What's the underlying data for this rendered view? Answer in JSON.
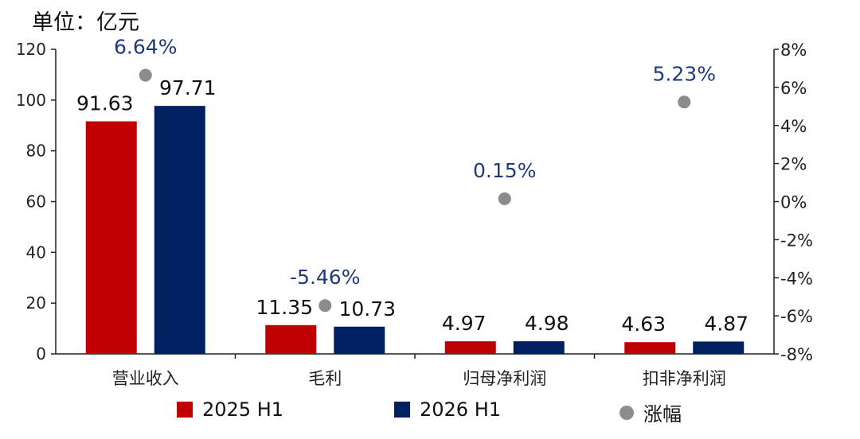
{
  "unit_label": "单位：亿元",
  "legend": [
    {
      "label": "2025 H1",
      "color": "#C00000",
      "shape": "square"
    },
    {
      "label": "2026 H1",
      "color": "#002060",
      "shape": "square"
    },
    {
      "label": "涨幅",
      "color": "#8C8C8C",
      "shape": "circle"
    }
  ],
  "chart_data": {
    "type": "bar",
    "categories": [
      "营业收入",
      "毛利",
      "归母净利润",
      "扣非净利润"
    ],
    "series": [
      {
        "name": "2025 H1",
        "values": [
          91.63,
          11.35,
          4.97,
          4.63
        ],
        "labels": [
          "91.63",
          "11.35",
          "4.97",
          "4.63"
        ],
        "color": "#C00000",
        "axis": "left"
      },
      {
        "name": "2026 H1",
        "values": [
          97.71,
          10.73,
          4.98,
          4.87
        ],
        "labels": [
          "97.71",
          "10.73",
          "4.98",
          "4.87"
        ],
        "color": "#002060",
        "axis": "left"
      },
      {
        "name": "涨幅",
        "type": "scatter",
        "values": [
          6.64,
          -5.46,
          0.15,
          5.23
        ],
        "labels": [
          "6.64%",
          "-5.46%",
          "0.15%",
          "5.23%"
        ],
        "color": "#8C8C8C",
        "label_color": "#1F3A7A",
        "axis": "right"
      }
    ],
    "ylim": [
      0,
      120
    ],
    "yticks": [
      "0",
      "20",
      "40",
      "60",
      "80",
      "100",
      "120"
    ],
    "y2lim": [
      -8,
      8
    ],
    "y2ticks": [
      "-8%",
      "-6%",
      "-4%",
      "-2%",
      "0%",
      "2%",
      "4%",
      "6%",
      "8%"
    ],
    "grid": false,
    "legend_position": "bottom"
  }
}
